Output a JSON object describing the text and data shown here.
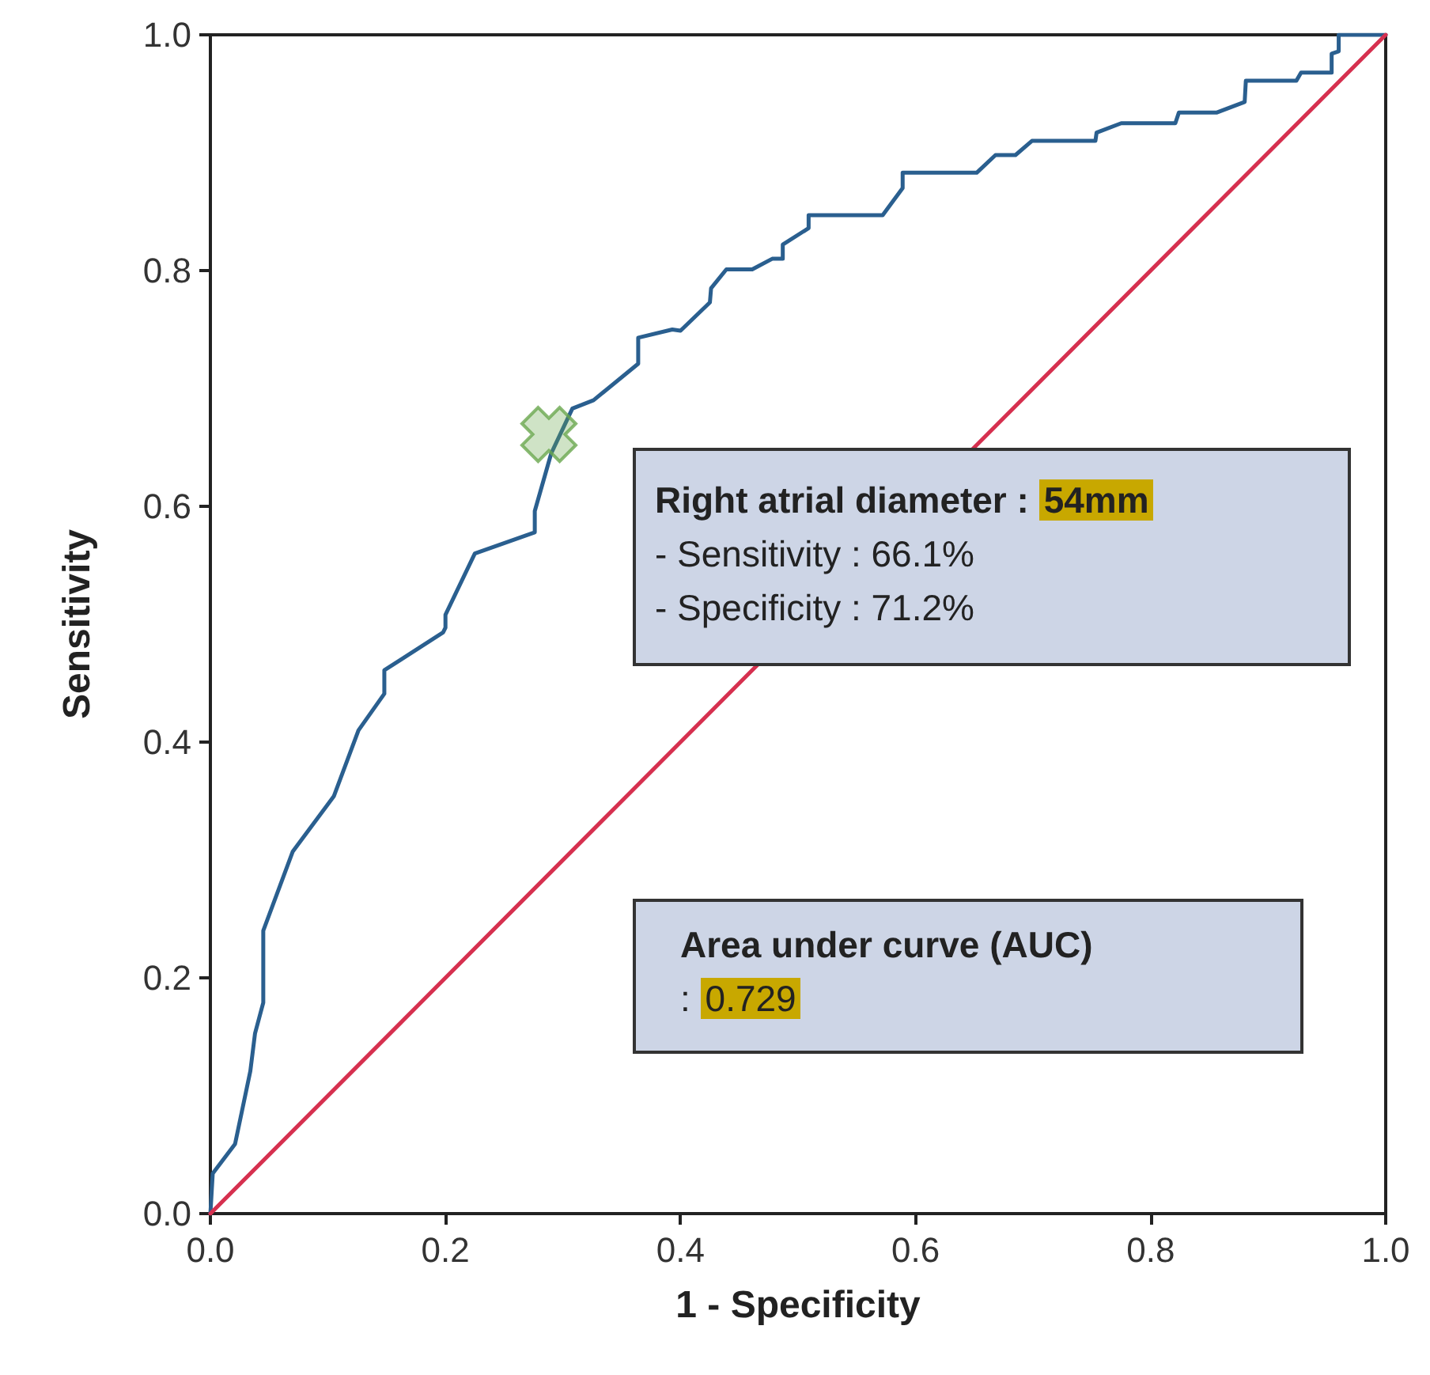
{
  "chart_data": {
    "type": "line",
    "xlabel": "1 - Specificity",
    "ylabel": "Sensitivity",
    "xlim": [
      0,
      1
    ],
    "ylim": [
      0,
      1
    ],
    "xticks": [
      {
        "value": 0,
        "label": "0.0"
      },
      0.2,
      0.4,
      0.6,
      0.8,
      {
        "value": 1,
        "label": "1.0"
      }
    ],
    "yticks": [
      {
        "value": 0,
        "label": "0.0"
      },
      0.2,
      0.4,
      0.6,
      0.8,
      {
        "value": 1,
        "label": "1.0"
      }
    ],
    "grid": false,
    "series": [
      {
        "color": "#2a5f8f",
        "marker": "none",
        "x": [
          0,
          0.002,
          0.021,
          0.034,
          0.038,
          0.045,
          0.045,
          0.07,
          0.105,
          0.126,
          0.148,
          0.148,
          0.198,
          0.2,
          0.2,
          0.225,
          0.276,
          0.276,
          0.29,
          0.308,
          0.326,
          0.364,
          0.364,
          0.393,
          0.4,
          0.425,
          0.426,
          0.439,
          0.461,
          0.478,
          0.487,
          0.487,
          0.509,
          0.509,
          0.572,
          0.589,
          0.589,
          0.652,
          0.668,
          0.685,
          0.699,
          0.753,
          0.754,
          0.775,
          0.821,
          0.824,
          0.856,
          0.88,
          0.881,
          0.924,
          0.928,
          0.954,
          0.954,
          0.96,
          0.96,
          1
        ],
        "values": [
          0,
          0.034,
          0.059,
          0.121,
          0.153,
          0.179,
          0.24,
          0.307,
          0.354,
          0.41,
          0.441,
          0.461,
          0.493,
          0.497,
          0.508,
          0.56,
          0.578,
          0.596,
          0.645,
          0.683,
          0.69,
          0.721,
          0.743,
          0.75,
          0.749,
          0.773,
          0.785,
          0.801,
          0.801,
          0.81,
          0.81,
          0.822,
          0.836,
          0.847,
          0.847,
          0.87,
          0.883,
          0.883,
          0.898,
          0.898,
          0.91,
          0.91,
          0.917,
          0.925,
          0.925,
          0.934,
          0.934,
          0.943,
          0.961,
          0.961,
          0.968,
          0.968,
          0.984,
          0.986,
          1,
          1
        ]
      },
      {
        "type": "line",
        "color": "#d6304f",
        "marker": "none",
        "x": [
          0,
          1
        ],
        "values": [
          0,
          1
        ]
      },
      {
        "type": "scatter",
        "color": "#6aa84f",
        "marker": "cross",
        "x": [
          0.288
        ],
        "values": [
          0.661
        ]
      }
    ],
    "annotations": [
      "Right atrial diameter : 54mm\n- Sensitivity : 66.1%\n- Specificity : 71.2%",
      "Area under curve (AUC)\n: 0.729"
    ]
  }
}
